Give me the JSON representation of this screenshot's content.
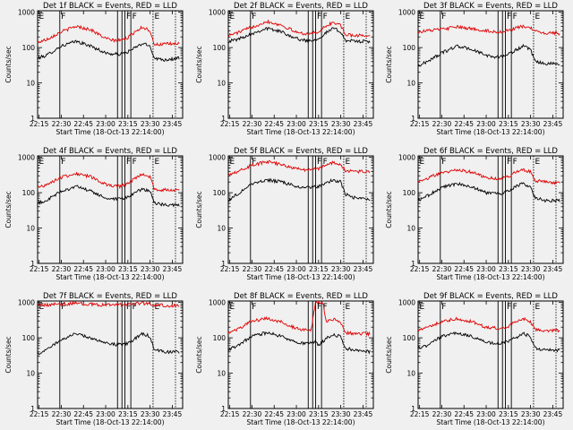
{
  "page": {
    "background": "#f0f0f0"
  },
  "colors": {
    "events": "#000000",
    "lld": "#e00000",
    "axis": "#000000"
  },
  "common": {
    "xlabel": "Start Time (18-Oct-13 22:14:00)",
    "ylabel": "Counts/sec",
    "xticks": [
      "22:15",
      "22:30",
      "22:45",
      "23:00",
      "23:15",
      "23:30",
      "23:45"
    ],
    "yticks": [
      "1",
      "10",
      "100",
      "1000"
    ],
    "xlim": [
      "22:14",
      "23:52"
    ],
    "ylim": [
      1,
      1100
    ],
    "yscale": "log",
    "markers": [
      {
        "label": "E",
        "time": "22:14"
      },
      {
        "label": "F",
        "time": "22:29"
      },
      {
        "label": "",
        "time": "23:08"
      },
      {
        "label": "",
        "time": "23:11"
      },
      {
        "label": "F",
        "time": "23:13"
      },
      {
        "label": "F",
        "time": "23:17"
      },
      {
        "label": "E",
        "time": "23:32"
      }
    ]
  },
  "chart_data": [
    {
      "type": "line",
      "title": "Det 1f BLACK = Events, RED = LLD",
      "x": [
        "22:14",
        "22:20",
        "22:30",
        "22:40",
        "22:50",
        "23:00",
        "23:05",
        "23:10",
        "23:15",
        "23:20",
        "23:25",
        "23:30",
        "23:33",
        "23:40",
        "23:50"
      ],
      "series": [
        {
          "name": "Events",
          "color": "#000000",
          "values": [
            50,
            60,
            110,
            150,
            110,
            70,
            65,
            65,
            75,
            100,
            130,
            110,
            50,
            45,
            50
          ]
        },
        {
          "name": "LLD",
          "color": "#e00000",
          "values": [
            140,
            170,
            280,
            400,
            320,
            180,
            160,
            160,
            190,
            290,
            380,
            300,
            120,
            125,
            130
          ]
        }
      ]
    },
    {
      "type": "line",
      "title": "Det 2f BLACK = Events, RED = LLD",
      "x": [
        "22:14",
        "22:20",
        "22:30",
        "22:40",
        "22:50",
        "23:00",
        "23:05",
        "23:10",
        "23:15",
        "23:20",
        "23:25",
        "23:30",
        "23:33",
        "23:40",
        "23:50"
      ],
      "series": [
        {
          "name": "Events",
          "color": "#000000",
          "values": [
            150,
            170,
            250,
            350,
            280,
            180,
            160,
            160,
            180,
            260,
            350,
            280,
            160,
            150,
            150
          ]
        },
        {
          "name": "LLD",
          "color": "#e00000",
          "values": [
            220,
            260,
            380,
            550,
            430,
            270,
            250,
            250,
            280,
            400,
            520,
            420,
            230,
            220,
            220
          ]
        }
      ]
    },
    {
      "type": "line",
      "title": "Det 3f BLACK = Events, RED = LLD",
      "x": [
        "22:14",
        "22:20",
        "22:30",
        "22:40",
        "22:50",
        "23:00",
        "23:05",
        "23:10",
        "23:15",
        "23:20",
        "23:25",
        "23:30",
        "23:33",
        "23:40",
        "23:50"
      ],
      "series": [
        {
          "name": "Events",
          "color": "#000000",
          "values": [
            30,
            40,
            70,
            110,
            90,
            60,
            55,
            55,
            65,
            85,
            110,
            85,
            40,
            35,
            35
          ]
        },
        {
          "name": "LLD",
          "color": "#e00000",
          "values": [
            280,
            300,
            330,
            380,
            340,
            300,
            280,
            280,
            300,
            350,
            400,
            360,
            280,
            260,
            250
          ]
        }
      ]
    },
    {
      "type": "line",
      "title": "Det 4f BLACK = Events, RED = LLD",
      "x": [
        "22:14",
        "22:20",
        "22:30",
        "22:40",
        "22:50",
        "23:00",
        "23:05",
        "23:10",
        "23:15",
        "23:20",
        "23:25",
        "23:30",
        "23:33",
        "23:40",
        "23:50"
      ],
      "series": [
        {
          "name": "Events",
          "color": "#000000",
          "values": [
            50,
            60,
            110,
            150,
            110,
            70,
            65,
            65,
            75,
            100,
            130,
            110,
            50,
            45,
            45
          ]
        },
        {
          "name": "LLD",
          "color": "#e00000",
          "values": [
            140,
            170,
            270,
            350,
            280,
            170,
            150,
            150,
            180,
            260,
            340,
            280,
            120,
            120,
            120
          ]
        }
      ]
    },
    {
      "type": "line",
      "title": "Det 5f BLACK = Events, RED = LLD",
      "x": [
        "22:14",
        "22:20",
        "22:30",
        "22:40",
        "22:50",
        "23:00",
        "23:05",
        "23:10",
        "23:15",
        "23:20",
        "23:25",
        "23:30",
        "23:33",
        "23:40",
        "23:50"
      ],
      "series": [
        {
          "name": "Events",
          "color": "#000000",
          "values": [
            60,
            90,
            180,
            230,
            200,
            150,
            140,
            140,
            150,
            190,
            230,
            200,
            90,
            70,
            65
          ]
        },
        {
          "name": "LLD",
          "color": "#e00000",
          "values": [
            330,
            400,
            600,
            750,
            620,
            480,
            450,
            450,
            480,
            600,
            720,
            620,
            420,
            400,
            400
          ]
        }
      ]
    },
    {
      "type": "line",
      "title": "Det 6f BLACK = Events, RED = LLD",
      "x": [
        "22:14",
        "22:20",
        "22:30",
        "22:40",
        "22:50",
        "23:00",
        "23:05",
        "23:10",
        "23:15",
        "23:20",
        "23:25",
        "23:30",
        "23:33",
        "23:40",
        "23:50"
      ],
      "series": [
        {
          "name": "Events",
          "color": "#000000",
          "values": [
            60,
            80,
            140,
            180,
            150,
            100,
            95,
            95,
            110,
            150,
            180,
            150,
            70,
            60,
            60
          ]
        },
        {
          "name": "LLD",
          "color": "#e00000",
          "values": [
            210,
            250,
            370,
            450,
            380,
            270,
            250,
            250,
            280,
            380,
            450,
            380,
            220,
            200,
            190
          ]
        }
      ]
    },
    {
      "type": "line",
      "title": "Det 7f BLACK = Events, RED = LLD",
      "x": [
        "22:14",
        "22:20",
        "22:30",
        "22:40",
        "22:50",
        "23:00",
        "23:05",
        "23:10",
        "23:15",
        "23:20",
        "23:25",
        "23:30",
        "23:33",
        "23:40",
        "23:50"
      ],
      "series": [
        {
          "name": "Events",
          "color": "#000000",
          "values": [
            35,
            45,
            90,
            130,
            100,
            70,
            65,
            65,
            70,
            95,
            130,
            110,
            45,
            40,
            40
          ]
        },
        {
          "name": "LLD",
          "color": "#e00000",
          "values": [
            800,
            850,
            900,
            950,
            900,
            850,
            850,
            850,
            880,
            920,
            950,
            900,
            850,
            820,
            800
          ]
        }
      ]
    },
    {
      "type": "line",
      "title": "Det 8f BLACK = Events, RED = LLD",
      "x": [
        "22:14",
        "22:20",
        "22:30",
        "22:40",
        "22:50",
        "23:00",
        "23:05",
        "23:10",
        "23:13",
        "23:15",
        "23:18",
        "23:20",
        "23:25",
        "23:30",
        "23:33",
        "23:40",
        "23:50"
      ],
      "series": [
        {
          "name": "Events",
          "color": "#000000",
          "values": [
            45,
            60,
            110,
            140,
            110,
            75,
            70,
            70,
            80,
            60,
            80,
            95,
            120,
            110,
            50,
            45,
            40
          ]
        },
        {
          "name": "LLD",
          "color": "#e00000",
          "values": [
            140,
            170,
            300,
            350,
            280,
            180,
            170,
            170,
            1000,
            1000,
            1000,
            300,
            330,
            280,
            140,
            130,
            130
          ]
        }
      ]
    },
    {
      "type": "line",
      "title": "Det 9f BLACK = Events, RED = LLD",
      "x": [
        "22:14",
        "22:20",
        "22:30",
        "22:40",
        "22:50",
        "23:00",
        "23:05",
        "23:10",
        "23:15",
        "23:20",
        "23:25",
        "23:30",
        "23:33",
        "23:40",
        "23:50"
      ],
      "series": [
        {
          "name": "Events",
          "color": "#000000",
          "values": [
            50,
            60,
            110,
            140,
            110,
            75,
            70,
            70,
            80,
            100,
            130,
            110,
            50,
            45,
            45
          ]
        },
        {
          "name": "LLD",
          "color": "#e00000",
          "values": [
            160,
            190,
            290,
            350,
            290,
            200,
            190,
            190,
            210,
            290,
            350,
            290,
            170,
            160,
            160
          ]
        }
      ]
    }
  ]
}
